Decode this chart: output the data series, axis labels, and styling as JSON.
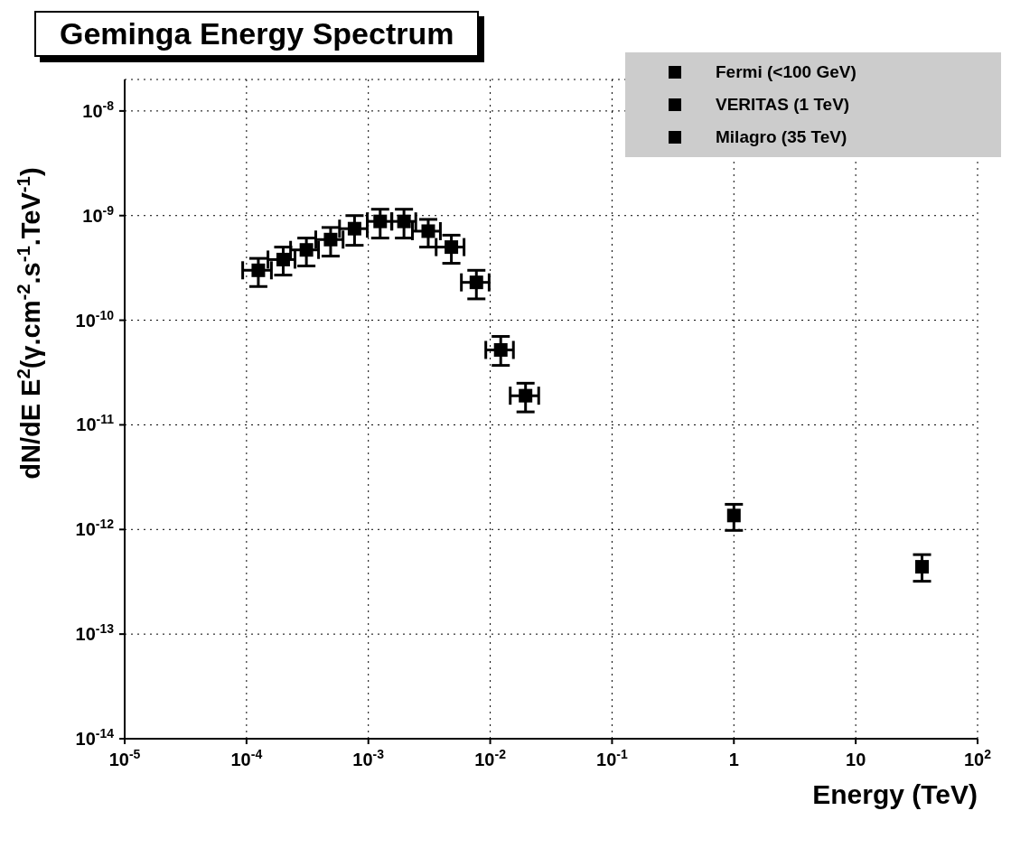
{
  "chart_data": {
    "type": "scatter",
    "title": "Geminga Energy Spectrum",
    "xlabel": "Energy (TeV)",
    "ylabel": "dN/dE E$^{2}$(γ.cm$^{-2}$.s$^{-1}$.TeV$^{-1}$)",
    "log": "xy",
    "grid": true,
    "legend": "top right",
    "marker": "square",
    "xlim": [
      1e-05,
      100
    ],
    "ylim": [
      1e-14,
      2e-08
    ],
    "xticks": [
      {
        "value": 1e-05,
        "label": "10$^{-5}$"
      },
      {
        "value": 0.0001,
        "label": "10$^{-4}$"
      },
      {
        "value": 0.001,
        "label": "10$^{-3}$"
      },
      {
        "value": 0.01,
        "label": "10$^{-2}$"
      },
      {
        "value": 0.1,
        "label": "10$^{-1}$"
      },
      1,
      10,
      {
        "value": 100,
        "label": "10$^{2}$"
      }
    ],
    "yticks": [
      {
        "value": 1e-14,
        "label": "10$^{-14}$"
      },
      {
        "value": 1e-13,
        "label": "10$^{-13}$"
      },
      {
        "value": 1e-12,
        "label": "10$^{-12}$"
      },
      {
        "value": 1e-11,
        "label": "10$^{-11}$"
      },
      {
        "value": 1e-10,
        "label": "10$^{-10}$"
      },
      {
        "value": 1e-09,
        "label": "10$^{-9}$"
      },
      {
        "value": 1e-08,
        "label": "10$^{-8}$"
      }
    ],
    "series": [
      {
        "name": "Fermi (<100 GeV)",
        "color": "#000000",
        "x": [
          0.000125,
          0.0002,
          0.00031,
          0.00049,
          0.00077,
          0.00125,
          0.00196,
          0.0031,
          0.0048,
          0.0077,
          0.0122,
          0.0195
        ],
        "values": [
          3e-10,
          3.8e-10,
          4.7e-10,
          5.9e-10,
          7.5e-10,
          8.8e-10,
          8.8e-10,
          7.1e-10,
          5e-10,
          2.3e-10,
          5.2e-11,
          1.9e-11
        ],
        "errors": [
          [
            2.1e-10,
            3.9e-10
          ],
          [
            2.7e-10,
            5e-10
          ],
          [
            3.3e-10,
            6.1e-10
          ],
          [
            4.1e-10,
            7.7e-10
          ],
          [
            5.2e-10,
            1e-09
          ],
          [
            6.1e-10,
            1.15e-09
          ],
          [
            6.1e-10,
            1.15e-09
          ],
          [
            5e-10,
            9.2e-10
          ],
          [
            3.5e-10,
            6.5e-10
          ],
          [
            1.6e-10,
            3e-10
          ],
          [
            3.7e-11,
            7e-11
          ],
          [
            1.33e-11,
            2.5e-11
          ]
        ],
        "xerrors": [
          [
            9.3e-05,
            0.00016
          ],
          [
            0.00015,
            0.00025
          ],
          [
            0.00023,
            0.00039
          ],
          [
            0.00037,
            0.00062
          ],
          [
            0.00058,
            0.00098
          ],
          [
            0.00098,
            0.00155
          ],
          [
            0.00156,
            0.00245
          ],
          [
            0.0023,
            0.0039
          ],
          [
            0.0036,
            0.0061
          ],
          [
            0.0058,
            0.0098
          ],
          [
            0.0092,
            0.0155
          ],
          [
            0.0146,
            0.025
          ]
        ]
      },
      {
        "name": "VERITAS (1 TeV)",
        "color": "#000000",
        "x": [
          1
        ],
        "values": [
          1.36e-12
        ],
        "errors": [
          [
            9.8e-13,
            1.74e-12
          ]
        ]
      },
      {
        "name": "Milagro (35 TeV)",
        "color": "#000000",
        "x": [
          35
        ],
        "values": [
          4.4e-13
        ],
        "errors": [
          [
            3.2e-13,
            5.75e-13
          ]
        ]
      }
    ]
  }
}
